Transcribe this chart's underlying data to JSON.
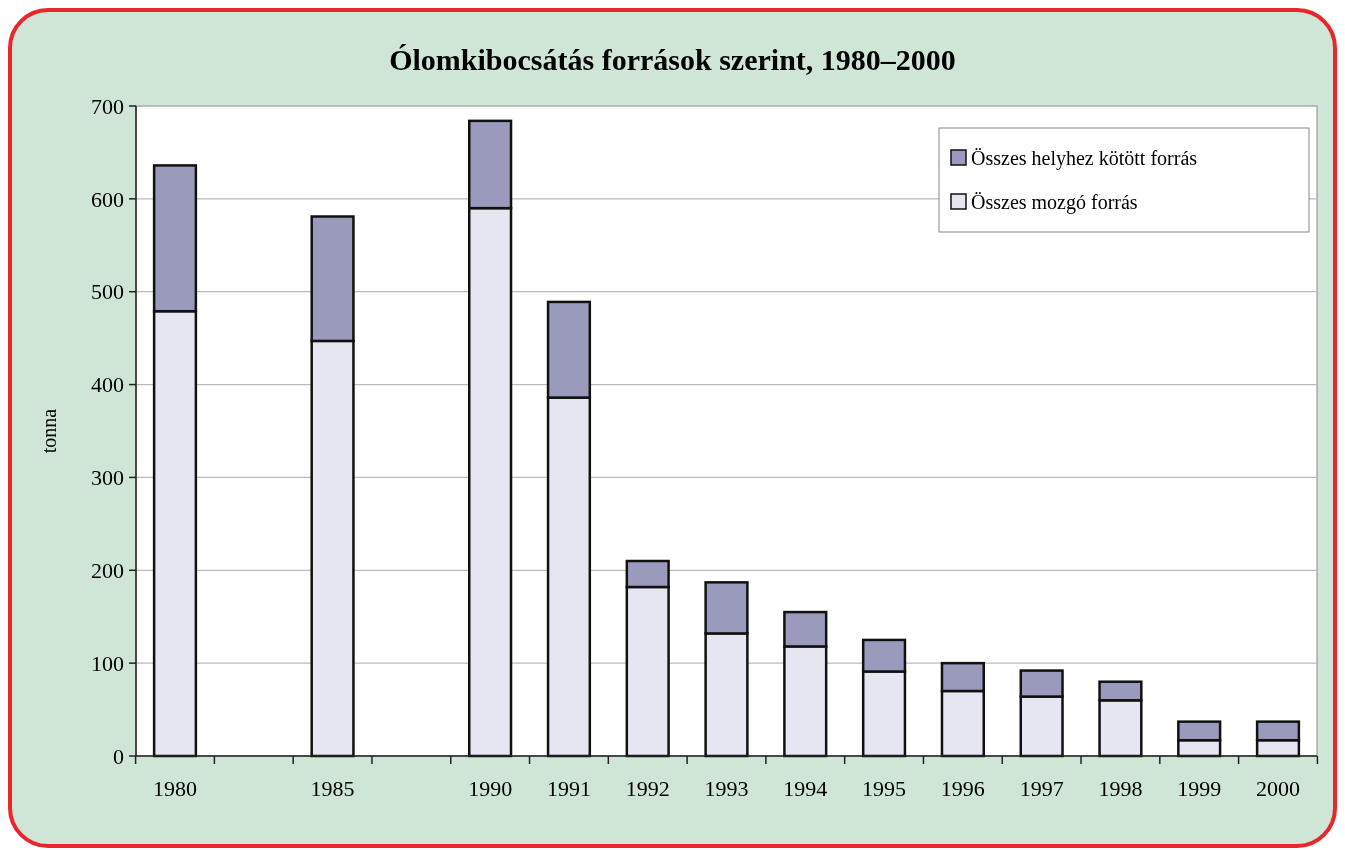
{
  "chart_data": {
    "type": "bar",
    "stacked": true,
    "title": "Ólomkibocsátás források szerint, 1980–2000",
    "ylabel": "tonna",
    "categories": [
      "1980",
      null,
      "1985",
      null,
      "1990",
      "1991",
      "1992",
      "1993",
      "1994",
      "1995",
      "1996",
      "1997",
      "1998",
      "1999",
      "2000"
    ],
    "series": [
      {
        "name": "Összes mozgó forrás",
        "color": "#e6e6f2",
        "values": [
          479,
          null,
          447,
          null,
          590,
          386,
          182,
          132,
          118,
          91,
          70,
          64,
          60,
          17,
          17
        ]
      },
      {
        "name": "Összes helyhez kötött forrás",
        "color": "#9a9abc",
        "values": [
          157,
          null,
          134,
          null,
          94,
          103,
          28,
          55,
          37,
          34,
          30,
          28,
          20,
          20,
          20
        ]
      }
    ],
    "ylim": [
      0,
      700
    ],
    "yticks": [
      0,
      100,
      200,
      300,
      400,
      500,
      600,
      700
    ],
    "grid": "y",
    "legend": "top right"
  }
}
